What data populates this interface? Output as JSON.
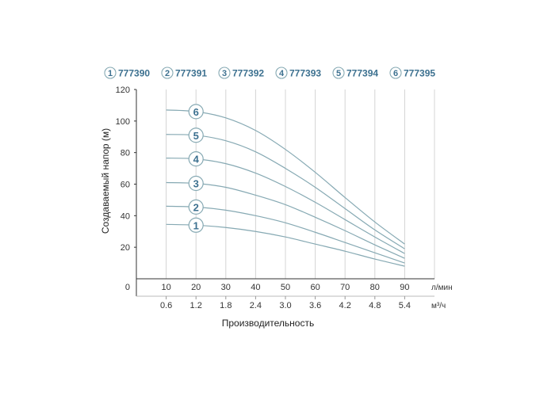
{
  "chart_data": {
    "type": "line",
    "ylabel": "Создаваемый напор (м)",
    "xlabel": "Производительность",
    "x_unit_primary": "л/мин",
    "x_unit_secondary": "м³/ч",
    "y_ticks": [
      "120",
      "100",
      "80",
      "60",
      "40",
      "20"
    ],
    "origin_label": "0",
    "x_ticks_primary": [
      "10",
      "20",
      "30",
      "40",
      "50",
      "60",
      "70",
      "80",
      "90"
    ],
    "x_ticks_secondary": [
      "0.6",
      "1.2",
      "1.8",
      "2.4",
      "3.0",
      "3.6",
      "4.2",
      "4.8",
      "5.4"
    ],
    "xlim": [
      0,
      100
    ],
    "ylim": [
      0,
      120
    ],
    "grid": "vertical",
    "colors": {
      "curve": "#86a9b3",
      "label": "#3d7190",
      "grid": "#d4d4d4"
    },
    "x": [
      10,
      20,
      30,
      40,
      50,
      60,
      70,
      80,
      90
    ],
    "series": [
      {
        "num": "1",
        "name": "777390",
        "values": [
          34.5,
          34,
          32.5,
          30,
          26.5,
          22,
          17.5,
          12.5,
          8
        ]
      },
      {
        "num": "2",
        "name": "777391",
        "values": [
          46,
          45.5,
          43.5,
          40,
          35.5,
          29.5,
          23,
          16.5,
          10
        ]
      },
      {
        "num": "3",
        "name": "777392",
        "values": [
          61,
          60.5,
          58,
          53,
          47,
          39,
          30.5,
          21.5,
          13
        ]
      },
      {
        "num": "4",
        "name": "777393",
        "values": [
          76.5,
          76,
          73,
          67,
          58.5,
          48.5,
          37.5,
          26.5,
          16
        ]
      },
      {
        "num": "5",
        "name": "777394",
        "values": [
          91.5,
          91,
          87.5,
          80.5,
          70,
          58,
          44.5,
          31,
          19
        ]
      },
      {
        "num": "6",
        "name": "777395",
        "values": [
          107,
          106,
          102,
          94,
          82,
          67.5,
          51.5,
          36,
          22
        ]
      }
    ]
  }
}
